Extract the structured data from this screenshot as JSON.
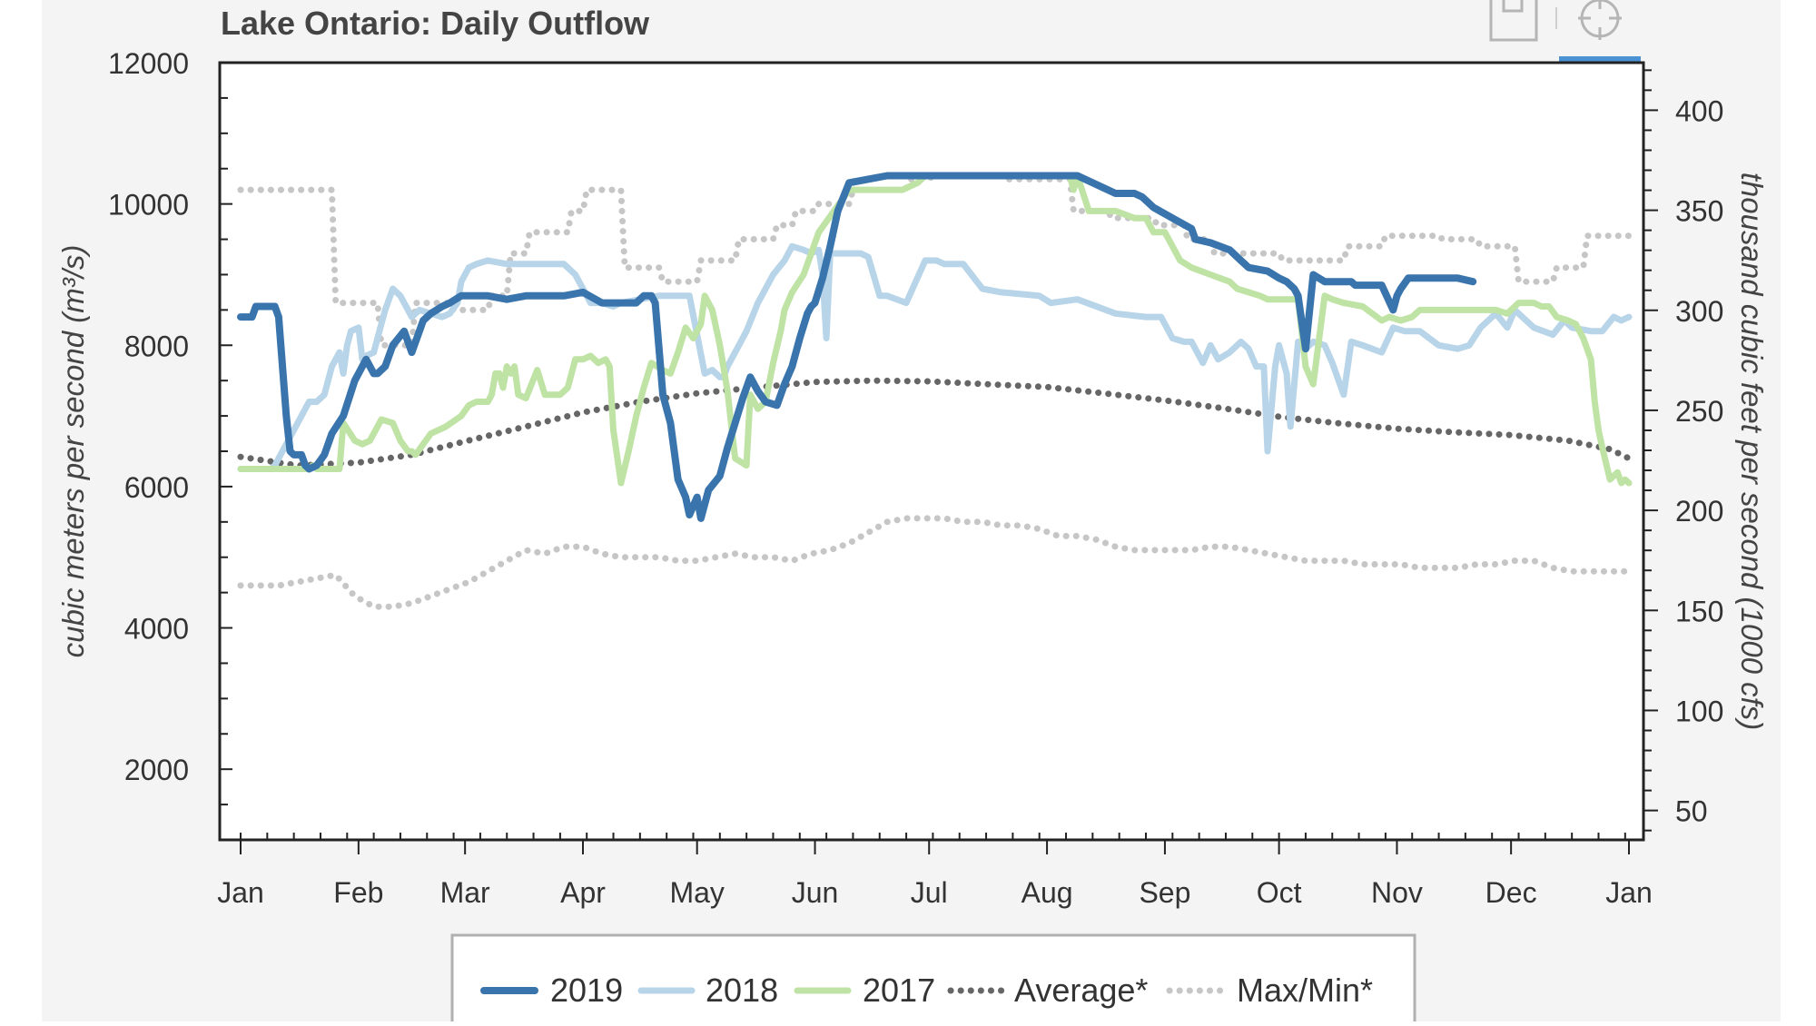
{
  "toolbar": {
    "save_icon": "save-icon",
    "crosshair_icon": "crosshair-icon"
  },
  "colors": {
    "page_bg": "#f4f4f4",
    "plot_bg": "#ffffff",
    "s2019": "#3a74ad",
    "s2018": "#b7d4e8",
    "s2017": "#bfe3a4",
    "average": "#666666",
    "maxmin": "#c6c6c6",
    "toolbar_active": "#4b92d4"
  },
  "chart_data": {
    "type": "line",
    "title": "Lake Ontario: Daily Outflow",
    "ylabel": "cubic meters per second (m³/s)",
    "y2label": "thousand cubic feet per second (1000 cfs)",
    "ylim": [
      1000,
      12000
    ],
    "y2lim": [
      35.31,
      423.78
    ],
    "yticks": [
      2000,
      4000,
      6000,
      8000,
      10000,
      12000
    ],
    "y2ticks": [
      50,
      100,
      150,
      200,
      250,
      300,
      350,
      400
    ],
    "xlim": [
      0,
      365
    ],
    "xtick_days": [
      0,
      31,
      59,
      90,
      120,
      151,
      181,
      212,
      243,
      273,
      304,
      334,
      365
    ],
    "xtick_labels": [
      "Jan",
      "Feb",
      "Mar",
      "Apr",
      "May",
      "Jun",
      "Jul",
      "Aug",
      "Sep",
      "Oct",
      "Nov",
      "Dec",
      "Jan"
    ],
    "grid": false,
    "legend_position": "bottom",
    "series": [
      {
        "name": "2019",
        "style": "solid-thick",
        "x": [
          0,
          3,
          4,
          9,
          10,
          12,
          13,
          14,
          16,
          17,
          18,
          20,
          22,
          24,
          27,
          30,
          31,
          33,
          35,
          36,
          38,
          40,
          43,
          45,
          48,
          50,
          53,
          55,
          58,
          60,
          62,
          65,
          70,
          75,
          80,
          85,
          90,
          95,
          100,
          104,
          106,
          108,
          109,
          111,
          113,
          115,
          117,
          118,
          120,
          121,
          123,
          126,
          128,
          130,
          132,
          134,
          136,
          138,
          141,
          143,
          145,
          147,
          149,
          150,
          151,
          153,
          155,
          157,
          160,
          170,
          180,
          190,
          200,
          210,
          220,
          230,
          235,
          237,
          238,
          240,
          245,
          250,
          251,
          255,
          260,
          263,
          265,
          270,
          273,
          275,
          277,
          278,
          280,
          282,
          285,
          292,
          293,
          300,
          303,
          304,
          305,
          307,
          310,
          320,
          324
        ],
        "y": [
          8400,
          8400,
          8550,
          8550,
          8400,
          7000,
          6500,
          6450,
          6450,
          6300,
          6250,
          6300,
          6450,
          6750,
          7000,
          7500,
          7600,
          7800,
          7600,
          7600,
          7700,
          8000,
          8200,
          7900,
          8350,
          8450,
          8550,
          8600,
          8700,
          8700,
          8700,
          8700,
          8650,
          8700,
          8700,
          8700,
          8750,
          8600,
          8600,
          8600,
          8700,
          8700,
          8600,
          7300,
          6900,
          6100,
          5850,
          5600,
          5850,
          5550,
          5950,
          6150,
          6550,
          6900,
          7250,
          7550,
          7350,
          7200,
          7150,
          7450,
          7700,
          8100,
          8450,
          8550,
          8600,
          8950,
          9400,
          9900,
          10300,
          10400,
          10400,
          10400,
          10400,
          10400,
          10400,
          10150,
          10150,
          10100,
          10050,
          9950,
          9800,
          9650,
          9500,
          9450,
          9350,
          9200,
          9100,
          9050,
          8950,
          8900,
          8800,
          8700,
          7950,
          9000,
          8900,
          8900,
          8850,
          8850,
          8500,
          8700,
          8800,
          8950,
          8950,
          8950,
          8900
        ]
      },
      {
        "name": "2018",
        "style": "solid-thick",
        "x": [
          0,
          8,
          9,
          18,
          20,
          22,
          24,
          26,
          27,
          28,
          29,
          31,
          32,
          33,
          35,
          37,
          38,
          40,
          42,
          45,
          47,
          50,
          53,
          55,
          57,
          58,
          60,
          62,
          65,
          70,
          75,
          80,
          85,
          88,
          92,
          95,
          98,
          100,
          105,
          110,
          113,
          115,
          118,
          122,
          124,
          126,
          127,
          128,
          130,
          133,
          136,
          138,
          140,
          143,
          145,
          148,
          150,
          152,
          153,
          154,
          155,
          158,
          160,
          163,
          165,
          168,
          170,
          175,
          180,
          183,
          185,
          190,
          195,
          200,
          210,
          213,
          220,
          230,
          238,
          240,
          242,
          245,
          248,
          250,
          253,
          255,
          257,
          260,
          263,
          265,
          267,
          269,
          270,
          272,
          273,
          275,
          276,
          278,
          280,
          282,
          285,
          287,
          290,
          292,
          295,
          300,
          303,
          306,
          310,
          315,
          320,
          323,
          326,
          330,
          333,
          335,
          340,
          345,
          348,
          350,
          355,
          358,
          361,
          363,
          365
        ],
        "y": [
          6250,
          6250,
          6300,
          7200,
          7200,
          7300,
          7700,
          7900,
          7600,
          8000,
          8200,
          8250,
          7800,
          7850,
          7900,
          8300,
          8500,
          8800,
          8700,
          8400,
          8500,
          8450,
          8400,
          8450,
          8600,
          8900,
          9100,
          9150,
          9200,
          9150,
          9150,
          9150,
          9150,
          9000,
          8600,
          8600,
          8550,
          8600,
          8650,
          8700,
          8700,
          8700,
          8700,
          7600,
          7650,
          7550,
          7550,
          7700,
          7900,
          8200,
          8600,
          8800,
          9000,
          9200,
          9400,
          9350,
          9300,
          9350,
          9000,
          8100,
          9300,
          9300,
          9300,
          9300,
          9250,
          8700,
          8700,
          8600,
          9200,
          9200,
          9150,
          9150,
          8800,
          8750,
          8700,
          8600,
          8650,
          8450,
          8400,
          8400,
          8400,
          8100,
          8050,
          8050,
          7750,
          8000,
          7800,
          7900,
          8050,
          7950,
          7700,
          7700,
          6500,
          7700,
          8000,
          7600,
          6850,
          8050,
          7950,
          8050,
          8000,
          7750,
          7300,
          8050,
          8000,
          7900,
          8250,
          8200,
          8200,
          8000,
          7950,
          8000,
          8250,
          8450,
          8250,
          8500,
          8250,
          8150,
          8350,
          8250,
          8200,
          8200,
          8400,
          8350,
          8400
        ]
      },
      {
        "name": "2017",
        "style": "solid-thick",
        "x": [
          0,
          10,
          15,
          18,
          19,
          20,
          22,
          26,
          27,
          30,
          32,
          34,
          37,
          40,
          42,
          44,
          45,
          46,
          50,
          54,
          58,
          60,
          62,
          65,
          66,
          67,
          68,
          69,
          70,
          71,
          72,
          73,
          75,
          78,
          80,
          84,
          86,
          88,
          90,
          92,
          94,
          96,
          97,
          98,
          100,
          102,
          104,
          106,
          108,
          111,
          113,
          115,
          117,
          119,
          121,
          122,
          124,
          126,
          128,
          130,
          133,
          134,
          136,
          138,
          140,
          142,
          143,
          145,
          148,
          150,
          152,
          156,
          160,
          165,
          168,
          170,
          174,
          178,
          180,
          190,
          200,
          210,
          215,
          217,
          218,
          219,
          220,
          223,
          225,
          227,
          230,
          235,
          238,
          240,
          241,
          243,
          245,
          247,
          250,
          255,
          260,
          262,
          265,
          268,
          270,
          272,
          273,
          275,
          277,
          278,
          280,
          282,
          285,
          287,
          290,
          295,
          300,
          302,
          305,
          308,
          310,
          315,
          320,
          325,
          330,
          333,
          336,
          340,
          342,
          343,
          344,
          346,
          349,
          351,
          353,
          355,
          356,
          357,
          358,
          360,
          362,
          363,
          364,
          365
        ],
        "y": [
          6250,
          6250,
          6250,
          6250,
          6300,
          6250,
          6250,
          6250,
          6900,
          6650,
          6600,
          6650,
          6950,
          6900,
          6650,
          6500,
          6500,
          6450,
          6750,
          6850,
          7000,
          7150,
          7200,
          7200,
          7300,
          7600,
          7600,
          7400,
          7700,
          7600,
          7700,
          7300,
          7250,
          7650,
          7300,
          7300,
          7400,
          7800,
          7800,
          7850,
          7750,
          7800,
          7700,
          6800,
          6050,
          6500,
          7000,
          7400,
          7750,
          7650,
          7600,
          7900,
          8250,
          8100,
          8300,
          8700,
          8500,
          8000,
          7350,
          6400,
          6300,
          7300,
          7100,
          7200,
          7750,
          8200,
          8500,
          8750,
          9000,
          9300,
          9600,
          9900,
          10200,
          10200,
          10200,
          10200,
          10200,
          10300,
          10400,
          10400,
          10400,
          10400,
          10400,
          10400,
          10400,
          10200,
          10400,
          9900,
          9900,
          9900,
          9900,
          9800,
          9800,
          9600,
          9600,
          9600,
          9400,
          9200,
          9100,
          9000,
          8900,
          8800,
          8750,
          8700,
          8650,
          8650,
          8650,
          8650,
          8650,
          8650,
          7700,
          7450,
          8700,
          8650,
          8600,
          8550,
          8350,
          8400,
          8350,
          8400,
          8500,
          8500,
          8500,
          8500,
          8500,
          8450,
          8600,
          8600,
          8550,
          8550,
          8550,
          8400,
          8350,
          8300,
          8100,
          7800,
          7200,
          6800,
          6550,
          6100,
          6200,
          6050,
          6100,
          6050
        ]
      },
      {
        "name": "Average*",
        "style": "dotted",
        "x": [
          0,
          15,
          31,
          45,
          59,
          75,
          90,
          105,
          120,
          135,
          151,
          166,
          181,
          196,
          212,
          227,
          243,
          258,
          273,
          288,
          304,
          319,
          334,
          349,
          360,
          365
        ],
        "y": [
          6420,
          6300,
          6340,
          6450,
          6640,
          6850,
          7050,
          7200,
          7320,
          7400,
          7480,
          7500,
          7490,
          7450,
          7410,
          7320,
          7220,
          7110,
          6990,
          6900,
          6820,
          6770,
          6730,
          6650,
          6530,
          6400
        ]
      },
      {
        "name": "Max/Min*",
        "style": "dotted",
        "x": [
          0,
          10,
          11,
          24,
          25,
          36,
          37,
          45,
          46,
          55,
          56,
          65,
          66,
          70,
          71,
          75,
          76,
          86,
          87,
          90,
          91,
          100,
          101,
          110,
          111,
          120,
          121,
          130,
          131,
          140,
          141,
          145,
          146,
          151,
          152,
          160,
          161,
          175,
          176,
          181,
          182,
          200,
          201,
          218,
          219,
          228,
          229,
          240,
          241,
          248,
          249,
          255,
          256,
          273,
          274,
          290,
          291,
          300,
          301,
          315,
          316,
          325,
          326,
          335,
          336,
          345,
          346,
          353,
          354,
          360,
          361,
          365
        ],
        "y": [
          10200,
          10200,
          10200,
          10200,
          8600,
          8600,
          8000,
          8000,
          8600,
          8600,
          8500,
          8500,
          8700,
          8700,
          9300,
          9300,
          9600,
          9600,
          9900,
          9900,
          10200,
          10200,
          9100,
          9100,
          8900,
          8900,
          9200,
          9200,
          9500,
          9500,
          9700,
          9700,
          9900,
          9900,
          10000,
          10000,
          10200,
          10200,
          10350,
          10350,
          10400,
          10400,
          10350,
          10350,
          9900,
          9900,
          9800,
          9800,
          9700,
          9700,
          9500,
          9500,
          9300,
          9300,
          9200,
          9200,
          9400,
          9400,
          9550,
          9550,
          9500,
          9500,
          9400,
          9400,
          8900,
          8900,
          9100,
          9100,
          9550,
          9550,
          9550,
          9550
        ]
      },
      {
        "name": "Max/Min* (min)",
        "style": "dotted",
        "x": [
          0,
          10,
          15,
          20,
          25,
          30,
          35,
          40,
          45,
          50,
          55,
          60,
          65,
          70,
          75,
          80,
          85,
          90,
          95,
          100,
          105,
          110,
          115,
          120,
          125,
          130,
          135,
          140,
          145,
          150,
          155,
          160,
          165,
          170,
          175,
          180,
          185,
          190,
          195,
          200,
          205,
          210,
          215,
          220,
          225,
          230,
          235,
          240,
          245,
          250,
          255,
          260,
          265,
          270,
          275,
          280,
          285,
          290,
          295,
          300,
          305,
          310,
          315,
          320,
          325,
          330,
          335,
          340,
          345,
          350,
          355,
          360,
          365
        ],
        "y": [
          4600,
          4600,
          4650,
          4700,
          4750,
          4450,
          4300,
          4300,
          4350,
          4450,
          4550,
          4650,
          4800,
          4950,
          5100,
          5050,
          5150,
          5150,
          5050,
          5000,
          5000,
          5000,
          4950,
          4950,
          5000,
          5050,
          5000,
          5000,
          4950,
          5050,
          5100,
          5200,
          5350,
          5500,
          5550,
          5550,
          5550,
          5500,
          5500,
          5450,
          5450,
          5400,
          5300,
          5300,
          5250,
          5150,
          5100,
          5100,
          5100,
          5100,
          5150,
          5150,
          5100,
          5050,
          5000,
          4950,
          4950,
          4950,
          4900,
          4900,
          4900,
          4850,
          4850,
          4850,
          4900,
          4900,
          4950,
          4950,
          4850,
          4800,
          4800,
          4800,
          4800
        ]
      }
    ]
  }
}
